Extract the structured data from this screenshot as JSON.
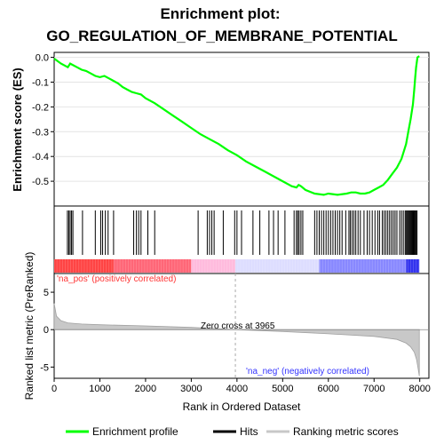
{
  "chart_data": {
    "type": "line",
    "title_line1": "Enrichment plot:",
    "title_line2": "GO_REGULATION_OF_MEMBRANE_POTENTIAL",
    "xlabel": "Rank in Ordered Dataset",
    "x_range": [
      0,
      8200
    ],
    "x_ticks": [
      0,
      1000,
      2000,
      3000,
      4000,
      5000,
      6000,
      7000,
      8000
    ],
    "es_panel": {
      "ylabel": "Enrichment score (ES)",
      "ylim": [
        -0.6,
        0.02
      ],
      "y_ticks": [
        0.0,
        -0.1,
        -0.2,
        -0.3,
        -0.4,
        -0.5
      ],
      "series": [
        {
          "name": "Enrichment profile",
          "color": "#00ff00",
          "x": [
            0,
            150,
            300,
            350,
            400,
            500,
            600,
            700,
            800,
            900,
            1000,
            1100,
            1200,
            1300,
            1400,
            1500,
            1600,
            1700,
            1800,
            1900,
            2000,
            2200,
            2400,
            2600,
            2800,
            3000,
            3200,
            3400,
            3600,
            3800,
            4000,
            4200,
            4400,
            4600,
            4800,
            5000,
            5200,
            5300,
            5350,
            5400,
            5500,
            5700,
            5900,
            6000,
            6200,
            6400,
            6500,
            6600,
            6700,
            6800,
            6900,
            7000,
            7100,
            7200,
            7300,
            7400,
            7500,
            7600,
            7700,
            7750,
            7800,
            7850,
            7880,
            7900,
            7920,
            7950,
            7990
          ],
          "y": [
            -0.005,
            -0.025,
            -0.04,
            -0.025,
            -0.03,
            -0.04,
            -0.05,
            -0.055,
            -0.065,
            -0.075,
            -0.08,
            -0.075,
            -0.085,
            -0.095,
            -0.105,
            -0.12,
            -0.13,
            -0.14,
            -0.145,
            -0.15,
            -0.165,
            -0.185,
            -0.21,
            -0.235,
            -0.26,
            -0.285,
            -0.31,
            -0.33,
            -0.35,
            -0.375,
            -0.395,
            -0.42,
            -0.44,
            -0.46,
            -0.48,
            -0.5,
            -0.52,
            -0.525,
            -0.515,
            -0.52,
            -0.535,
            -0.55,
            -0.555,
            -0.55,
            -0.555,
            -0.55,
            -0.545,
            -0.545,
            -0.55,
            -0.55,
            -0.545,
            -0.535,
            -0.525,
            -0.515,
            -0.495,
            -0.47,
            -0.445,
            -0.41,
            -0.35,
            -0.3,
            -0.25,
            -0.19,
            -0.13,
            -0.08,
            -0.04,
            0.0,
            0.005
          ]
        }
      ]
    },
    "hits_panel": {
      "legend_label": "Hits",
      "hit_positions": [
        290,
        320,
        350,
        380,
        410,
        620,
        900,
        1020,
        1060,
        1120,
        1180,
        1300,
        1740,
        1800,
        1850,
        1900,
        2050,
        2200,
        3150,
        3350,
        3400,
        3450,
        3500,
        3700,
        3950,
        4000,
        4100,
        4350,
        4500,
        4700,
        4800,
        4900,
        5050,
        5250,
        5300,
        5330,
        5360,
        5400,
        5440,
        5700,
        5750,
        5800,
        5850,
        5900,
        5950,
        6000,
        6050,
        6100,
        6150,
        6200,
        6250,
        6300,
        6380,
        6450,
        6480,
        6520,
        6560,
        6600,
        6650,
        6700,
        6780,
        6850,
        6900,
        6960,
        7020,
        7080,
        7120,
        7180,
        7220,
        7260,
        7300,
        7340,
        7380,
        7420,
        7460,
        7500,
        7560,
        7600,
        7640,
        7680,
        7700,
        7720,
        7740,
        7760,
        7780,
        7800,
        7820,
        7840,
        7860,
        7880,
        7900,
        7920,
        7940
      ]
    },
    "heat_bar": {
      "colors": [
        "#ff4444",
        "#ff6677",
        "#ffbbdd",
        "#ddddff",
        "#8888ff",
        "#3333ee"
      ],
      "segments": [
        [
          0,
          1300
        ],
        [
          1300,
          3000
        ],
        [
          3000,
          3965
        ],
        [
          3965,
          5800
        ],
        [
          5800,
          7700
        ],
        [
          7700,
          7990
        ]
      ]
    },
    "metric_panel": {
      "ylabel": "Ranked list metric (PreRanked)",
      "ylim": [
        -6.5,
        7.5
      ],
      "y_ticks": [
        5,
        0,
        -5
      ],
      "legend_label": "Ranking metric scores",
      "x": [
        0,
        50,
        150,
        300,
        600,
        1000,
        2000,
        3000,
        3965,
        5000,
        6000,
        7000,
        7500,
        7700,
        7800,
        7880,
        7930,
        7960,
        7990
      ],
      "y": [
        3.5,
        1.8,
        1.2,
        0.9,
        0.75,
        0.65,
        0.5,
        0.3,
        0.0,
        -0.25,
        -0.55,
        -0.9,
        -1.3,
        -1.8,
        -2.3,
        -3.0,
        -4.0,
        -5.0,
        -6.2
      ],
      "zero_cross_text": "Zero cross at 3965",
      "zero_cross": 3965,
      "pos_label": "'na_pos' (positively correlated)",
      "neg_label": "'na_neg' (negatively correlated)"
    },
    "legend": {
      "items": [
        {
          "label": "Enrichment profile",
          "color": "#00ff00"
        },
        {
          "label": "Hits",
          "color": "#000000"
        },
        {
          "label": "Ranking metric scores",
          "color": "#c8c8c8"
        }
      ]
    }
  }
}
